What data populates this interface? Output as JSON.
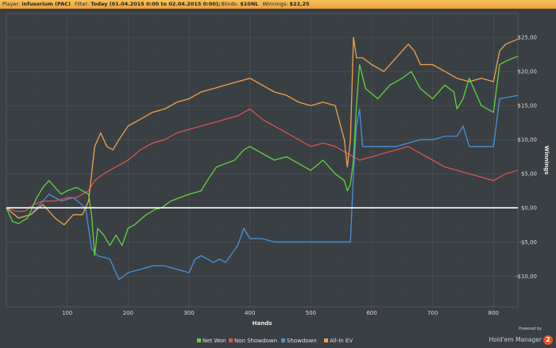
{
  "header": {
    "player_label": "Player:",
    "player_value": "infusorium (PAC)",
    "filter_label": "Filter:",
    "filter_value": "Today (01.04.2015 0:00 to 02.04.2015 0:00);",
    "blinds_label": "Blinds:",
    "blinds_value": "$10NL",
    "winnings_label": "Winnings:",
    "winnings_value": "$22,25"
  },
  "branding": {
    "powered_by": "Powered by",
    "product": "Hold'em Manager",
    "version": "2"
  },
  "colors": {
    "background": "#3a3f44",
    "grid": "#4e545a",
    "zero_line": "#ffffff",
    "net_won": "#5ed43e",
    "non_showdown": "#d9534f",
    "showdown": "#4a90d9",
    "all_in_ev": "#f0a04a"
  },
  "chart_data": {
    "type": "line",
    "xlabel": "Hands",
    "ylabel": "Winnings",
    "xlim": [
      0,
      840
    ],
    "ylim": [
      -14.5,
      28.5
    ],
    "x_ticks": [
      100,
      200,
      300,
      400,
      500,
      600,
      700,
      800
    ],
    "y_ticks": [
      -10,
      -5,
      0,
      5,
      10,
      15,
      20,
      25
    ],
    "y_tick_labels": [
      "-$10,00",
      "-$5,00",
      "$0,00",
      "$5,00",
      "$10,00",
      "$15,00",
      "$20,00",
      "$25,00"
    ],
    "grid": true,
    "legend_position": "bottom-center",
    "series": [
      {
        "name": "Net Won",
        "color": "#5ed43e",
        "points": [
          [
            0,
            0
          ],
          [
            10,
            -2
          ],
          [
            20,
            -2.3
          ],
          [
            35,
            -1.5
          ],
          [
            50,
            1.5
          ],
          [
            60,
            3
          ],
          [
            70,
            4
          ],
          [
            80,
            3
          ],
          [
            90,
            2
          ],
          [
            100,
            2.5
          ],
          [
            115,
            3
          ],
          [
            125,
            2.5
          ],
          [
            135,
            2
          ],
          [
            140,
            -1
          ],
          [
            145,
            -7
          ],
          [
            150,
            -3
          ],
          [
            160,
            -4
          ],
          [
            170,
            -5.5
          ],
          [
            180,
            -4
          ],
          [
            190,
            -5.5
          ],
          [
            200,
            -3
          ],
          [
            210,
            -2.5
          ],
          [
            230,
            -1
          ],
          [
            245,
            -0.2
          ],
          [
            255,
            0
          ],
          [
            270,
            1
          ],
          [
            300,
            2
          ],
          [
            320,
            2.5
          ],
          [
            330,
            4
          ],
          [
            345,
            6
          ],
          [
            360,
            6.5
          ],
          [
            375,
            7
          ],
          [
            390,
            8.5
          ],
          [
            400,
            9
          ],
          [
            420,
            8
          ],
          [
            440,
            7
          ],
          [
            460,
            7.5
          ],
          [
            480,
            6.5
          ],
          [
            500,
            5.5
          ],
          [
            520,
            7
          ],
          [
            540,
            5
          ],
          [
            555,
            4
          ],
          [
            560,
            2.5
          ],
          [
            565,
            3.5
          ],
          [
            570,
            7
          ],
          [
            575,
            15
          ],
          [
            580,
            21
          ],
          [
            590,
            17.5
          ],
          [
            610,
            16
          ],
          [
            630,
            18
          ],
          [
            650,
            19
          ],
          [
            665,
            20
          ],
          [
            680,
            17.5
          ],
          [
            700,
            16
          ],
          [
            720,
            18
          ],
          [
            735,
            17
          ],
          [
            740,
            14.5
          ],
          [
            750,
            16
          ],
          [
            760,
            19
          ],
          [
            780,
            15
          ],
          [
            800,
            14
          ],
          [
            810,
            21
          ],
          [
            820,
            21.5
          ],
          [
            840,
            22.25
          ]
        ]
      },
      {
        "name": "Non Showdown",
        "color": "#d9534f",
        "points": [
          [
            0,
            0
          ],
          [
            15,
            -0.5
          ],
          [
            30,
            -0.5
          ],
          [
            45,
            0.5
          ],
          [
            60,
            1
          ],
          [
            80,
            1
          ],
          [
            100,
            1.5
          ],
          [
            115,
            1.5
          ],
          [
            135,
            2.5
          ],
          [
            145,
            4
          ],
          [
            160,
            5
          ],
          [
            180,
            6
          ],
          [
            200,
            7
          ],
          [
            220,
            8.5
          ],
          [
            240,
            9.5
          ],
          [
            260,
            10
          ],
          [
            280,
            11
          ],
          [
            300,
            11.5
          ],
          [
            320,
            12
          ],
          [
            340,
            12.5
          ],
          [
            360,
            13
          ],
          [
            380,
            13.5
          ],
          [
            400,
            14.5
          ],
          [
            420,
            13
          ],
          [
            440,
            12
          ],
          [
            460,
            11
          ],
          [
            480,
            10
          ],
          [
            500,
            9
          ],
          [
            520,
            9.5
          ],
          [
            540,
            9
          ],
          [
            560,
            8
          ],
          [
            580,
            7
          ],
          [
            600,
            7.5
          ],
          [
            620,
            8
          ],
          [
            640,
            8.5
          ],
          [
            660,
            9
          ],
          [
            680,
            8
          ],
          [
            700,
            7
          ],
          [
            720,
            6
          ],
          [
            740,
            5.5
          ],
          [
            760,
            5
          ],
          [
            780,
            4.5
          ],
          [
            800,
            4
          ],
          [
            820,
            5
          ],
          [
            840,
            5.5
          ]
        ]
      },
      {
        "name": "Showdown",
        "color": "#4a90d9",
        "points": [
          [
            0,
            0
          ],
          [
            20,
            -1.5
          ],
          [
            40,
            -1
          ],
          [
            55,
            0.5
          ],
          [
            70,
            2
          ],
          [
            90,
            1
          ],
          [
            110,
            1.5
          ],
          [
            130,
            0
          ],
          [
            140,
            -6
          ],
          [
            150,
            -7
          ],
          [
            170,
            -7.5
          ],
          [
            185,
            -10.5
          ],
          [
            200,
            -9.5
          ],
          [
            220,
            -9
          ],
          [
            240,
            -8.5
          ],
          [
            260,
            -8.5
          ],
          [
            300,
            -9.5
          ],
          [
            310,
            -7.5
          ],
          [
            320,
            -7
          ],
          [
            340,
            -8
          ],
          [
            350,
            -7.5
          ],
          [
            360,
            -8
          ],
          [
            380,
            -5.5
          ],
          [
            390,
            -3
          ],
          [
            400,
            -4.5
          ],
          [
            420,
            -4.5
          ],
          [
            440,
            -5
          ],
          [
            480,
            -5
          ],
          [
            500,
            -5
          ],
          [
            540,
            -5
          ],
          [
            565,
            -5
          ],
          [
            570,
            5
          ],
          [
            575,
            12
          ],
          [
            580,
            14.5
          ],
          [
            585,
            9
          ],
          [
            600,
            9
          ],
          [
            640,
            9
          ],
          [
            660,
            9.5
          ],
          [
            680,
            10
          ],
          [
            700,
            10
          ],
          [
            720,
            10.5
          ],
          [
            740,
            10.5
          ],
          [
            750,
            12
          ],
          [
            760,
            9
          ],
          [
            780,
            9
          ],
          [
            800,
            9
          ],
          [
            810,
            16
          ],
          [
            840,
            16.5
          ]
        ]
      },
      {
        "name": "All-In EV",
        "color": "#f0a04a",
        "points": [
          [
            0,
            0
          ],
          [
            20,
            -1.5
          ],
          [
            40,
            -1
          ],
          [
            60,
            0.5
          ],
          [
            80,
            -1.5
          ],
          [
            95,
            -2.5
          ],
          [
            110,
            -1
          ],
          [
            125,
            -1
          ],
          [
            135,
            1
          ],
          [
            145,
            9
          ],
          [
            155,
            11
          ],
          [
            165,
            9
          ],
          [
            175,
            8.5
          ],
          [
            185,
            10
          ],
          [
            200,
            12
          ],
          [
            220,
            13
          ],
          [
            240,
            14
          ],
          [
            260,
            14.5
          ],
          [
            280,
            15.5
          ],
          [
            300,
            16
          ],
          [
            320,
            17
          ],
          [
            340,
            17.5
          ],
          [
            360,
            18
          ],
          [
            380,
            18.5
          ],
          [
            400,
            19
          ],
          [
            420,
            18
          ],
          [
            440,
            17
          ],
          [
            460,
            16.5
          ],
          [
            480,
            15.5
          ],
          [
            500,
            15
          ],
          [
            520,
            15.5
          ],
          [
            540,
            15
          ],
          [
            555,
            10
          ],
          [
            560,
            6
          ],
          [
            565,
            10
          ],
          [
            570,
            25
          ],
          [
            575,
            22
          ],
          [
            585,
            22
          ],
          [
            600,
            21
          ],
          [
            620,
            20
          ],
          [
            640,
            22
          ],
          [
            660,
            24
          ],
          [
            670,
            23
          ],
          [
            680,
            21
          ],
          [
            700,
            21
          ],
          [
            720,
            20
          ],
          [
            740,
            19
          ],
          [
            760,
            18.5
          ],
          [
            780,
            19
          ],
          [
            800,
            18.5
          ],
          [
            810,
            23
          ],
          [
            820,
            24
          ],
          [
            840,
            24.75
          ]
        ]
      }
    ]
  }
}
